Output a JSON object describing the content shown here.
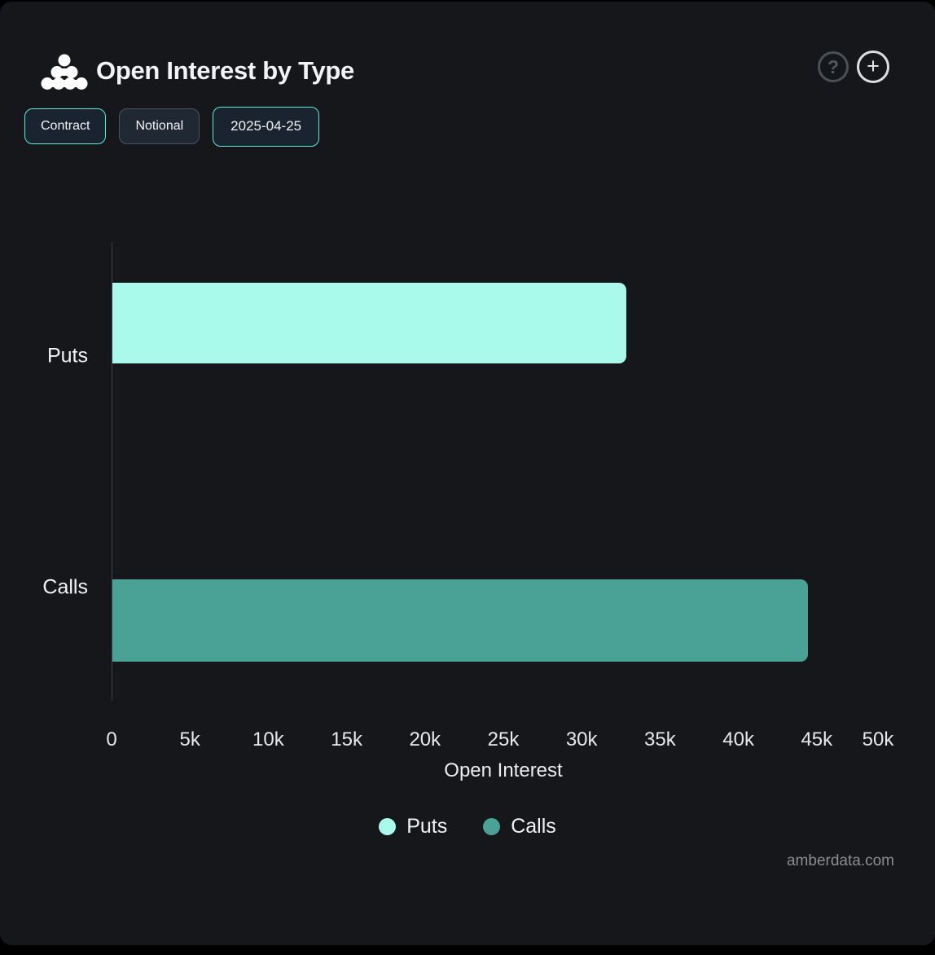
{
  "header": {
    "title": "Open Interest by Type",
    "help_glyph": "?",
    "add_glyph": "+"
  },
  "toolbar": {
    "buttons": [
      {
        "label": "Contract",
        "active": true
      },
      {
        "label": "Notional",
        "active": false
      },
      {
        "label": "2025-04-25",
        "active": true
      }
    ]
  },
  "chart_data": {
    "type": "bar",
    "orientation": "horizontal",
    "title": "Open Interest by Type",
    "categories": [
      "Puts",
      "Calls"
    ],
    "series": [
      {
        "name": "Puts",
        "color": "#aafaec",
        "values": [
          32800,
          null
        ]
      },
      {
        "name": "Calls",
        "color": "#4aa297",
        "values": [
          null,
          44400
        ]
      }
    ],
    "xlabel": "Open Interest",
    "xlim": [
      0,
      50000
    ],
    "xticks": {
      "values": [
        0,
        5000,
        10000,
        15000,
        20000,
        25000,
        30000,
        35000,
        40000,
        45000,
        50000
      ],
      "labels": [
        "0",
        "5k",
        "10k",
        "15k",
        "20k",
        "25k",
        "30k",
        "35k",
        "40k",
        "45k",
        "50k"
      ]
    },
    "grid": false,
    "legend": {
      "position": "bottom",
      "items": [
        {
          "label": "Puts",
          "color": "#aafaec"
        },
        {
          "label": "Calls",
          "color": "#4aa297"
        }
      ]
    }
  },
  "footer": {
    "watermark": "amberdata.com"
  },
  "colors": {
    "background": "#16171a",
    "accent": "#5eead4",
    "puts_bar": "#aafaec",
    "calls_bar": "#4aa297",
    "axis_line": "#3c4045"
  }
}
